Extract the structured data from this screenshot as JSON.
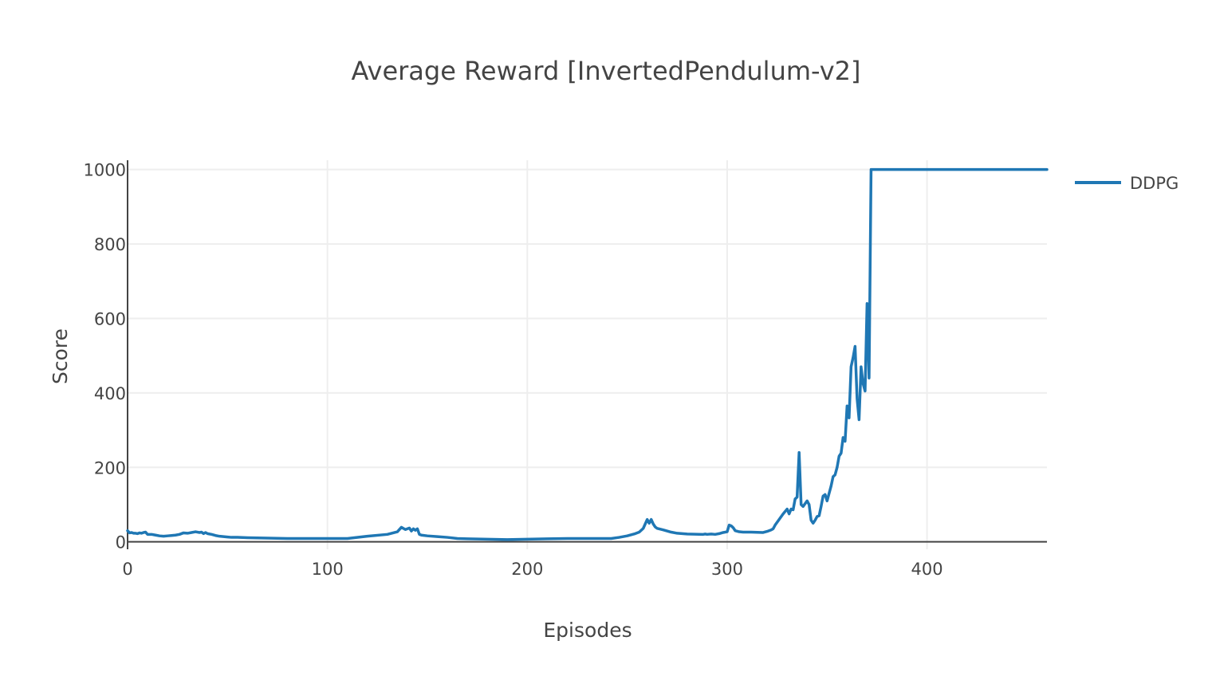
{
  "chart_data": {
    "type": "line",
    "title": "Average Reward [InvertedPendulum-v2]",
    "xlabel": "Episodes",
    "ylabel": "Score",
    "xlim": [
      0,
      460
    ],
    "ylim": [
      -20,
      1025
    ],
    "xticks": [
      0,
      100,
      200,
      300,
      400
    ],
    "yticks": [
      0,
      200,
      400,
      600,
      800,
      1000
    ],
    "grid": true,
    "legend_position": "top-right",
    "colors": {
      "series": "#1f77b4",
      "grid": "#eeeeee",
      "axis": "#444444",
      "text": "#444444"
    },
    "series": [
      {
        "name": "DDPG",
        "x": [
          0,
          1,
          2,
          3,
          4,
          5,
          6,
          7,
          8,
          9,
          10,
          12,
          14,
          16,
          18,
          20,
          22,
          24,
          26,
          28,
          30,
          32,
          34,
          36,
          37,
          38,
          39,
          40,
          41,
          42,
          44,
          46,
          48,
          50,
          52,
          55,
          60,
          70,
          80,
          90,
          100,
          110,
          120,
          130,
          135,
          137,
          139,
          141,
          142,
          143,
          144,
          145,
          146,
          147,
          150,
          155,
          160,
          165,
          170,
          180,
          190,
          200,
          210,
          220,
          230,
          242,
          246,
          250,
          254,
          256,
          258,
          260,
          261,
          262,
          263,
          264,
          265,
          268,
          272,
          275,
          280,
          288,
          289,
          290,
          292,
          294,
          296,
          298,
          300,
          301,
          302,
          303,
          304,
          306,
          308,
          312,
          318,
          320,
          322,
          323,
          324,
          326,
          328,
          330,
          331,
          332,
          333,
          334,
          335,
          336,
          337,
          338,
          340,
          341,
          342,
          343,
          344,
          345,
          346,
          347,
          348,
          349,
          350,
          351,
          352,
          353,
          354,
          355,
          356,
          357,
          358,
          359,
          360,
          361,
          362,
          363,
          364,
          365,
          366,
          367,
          368,
          369,
          370,
          371,
          372,
          373,
          374,
          380,
          400,
          430,
          460
        ],
        "y": [
          30,
          24,
          25,
          23,
          23,
          22,
          24,
          23,
          25,
          26,
          20,
          20,
          18,
          16,
          15,
          16,
          17,
          18,
          20,
          24,
          23,
          25,
          27,
          25,
          26,
          22,
          25,
          22,
          21,
          20,
          17,
          15,
          14,
          13,
          12,
          12,
          11,
          10,
          9,
          9,
          9,
          9,
          15,
          20,
          27,
          39,
          33,
          37,
          29,
          35,
          31,
          35,
          20,
          18,
          16,
          14,
          12,
          9,
          8,
          7,
          6,
          7,
          8,
          9,
          9,
          9,
          12,
          16,
          22,
          26,
          36,
          60,
          50,
          60,
          48,
          40,
          36,
          32,
          26,
          23,
          21,
          20,
          21,
          20,
          21,
          20,
          22,
          25,
          27,
          45,
          43,
          38,
          30,
          27,
          26,
          26,
          25,
          28,
          32,
          35,
          45,
          60,
          75,
          88,
          75,
          88,
          86,
          115,
          120,
          240,
          100,
          95,
          110,
          100,
          58,
          50,
          58,
          68,
          70,
          95,
          123,
          127,
          110,
          130,
          150,
          175,
          180,
          200,
          230,
          238,
          280,
          270,
          365,
          333,
          470,
          495,
          525,
          385,
          328,
          470,
          425,
          405,
          640,
          440,
          1000,
          1000,
          1000,
          1000,
          1000,
          1000,
          1000
        ]
      }
    ]
  }
}
